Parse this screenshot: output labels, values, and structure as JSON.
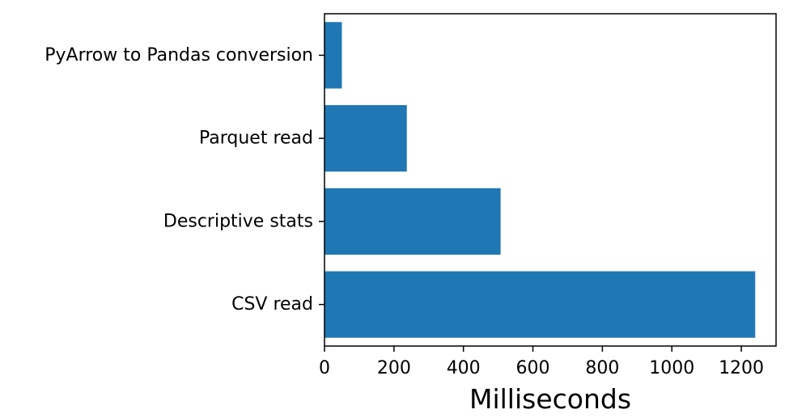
{
  "chart_data": {
    "type": "bar",
    "orientation": "horizontal",
    "categories": [
      "CSV read",
      "Descriptive stats",
      "Parquet read",
      "PyArrow to Pandas conversion"
    ],
    "values": [
      1240,
      507,
      237,
      50
    ],
    "title": "",
    "xlabel": "Milliseconds",
    "ylabel": "",
    "xlim": [
      0,
      1300
    ],
    "xticks": [
      0,
      200,
      400,
      600,
      800,
      1000,
      1200
    ],
    "bar_color": "#1f77b4",
    "grid": false,
    "legend": "none"
  }
}
